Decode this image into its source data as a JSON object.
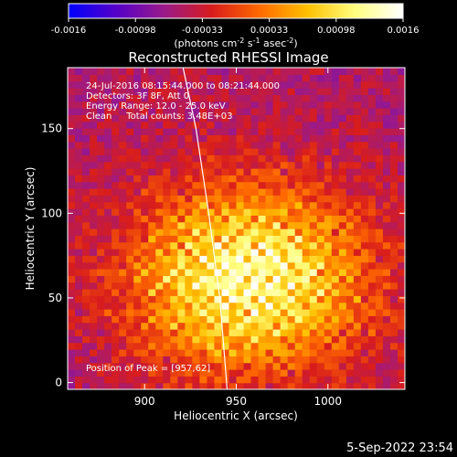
{
  "chart_data": {
    "type": "heatmap",
    "title": "Reconstructed RHESSI Image",
    "xlabel": "Heliocentric X (arcsec)",
    "ylabel": "Heliocentric Y (arcsec)",
    "xlim": [
      858,
      1042
    ],
    "ylim": [
      -4,
      186
    ],
    "x_ticks": [
      900,
      950,
      1000
    ],
    "y_ticks": [
      0,
      50,
      100,
      150
    ],
    "colorbar": {
      "range": [
        -0.0016,
        0.0016
      ],
      "tick_labels": [
        "-0.0016",
        "-0.00098",
        "-0.00033",
        "0.00033",
        "0.00098",
        "0.0016"
      ],
      "units_parts": [
        "(photons cm",
        "-2",
        " s",
        "-1",
        " asec",
        "-2",
        ")"
      ],
      "colormap": [
        "#0000ff",
        "#5500c8",
        "#9a1a8a",
        "#d81c1c",
        "#ff6a00",
        "#ffc000",
        "#ffff80",
        "#ffffff"
      ]
    },
    "annotations": [
      "24-Jul-2016 08:15:44.000 to 08:21:44.000",
      "Detectors: 3F 8F, Att 0",
      "Energy Range: 12.0 - 25.0 keV",
      "Clean     Total counts: 3.48E+03"
    ],
    "peak_label": "Position of Peak = [957,62]",
    "peak_position": [
      957,
      62
    ],
    "limb_curve": {
      "x": [
        921,
        928,
        935,
        941,
        945
      ],
      "y": [
        186,
        150,
        100,
        50,
        -4
      ]
    },
    "grid": false,
    "image_grid": {
      "nx": 46,
      "ny": 48,
      "x_range": [
        858,
        1042
      ],
      "y_range": [
        -4,
        186
      ]
    }
  },
  "timestamp": "5-Sep-2022 23:54"
}
